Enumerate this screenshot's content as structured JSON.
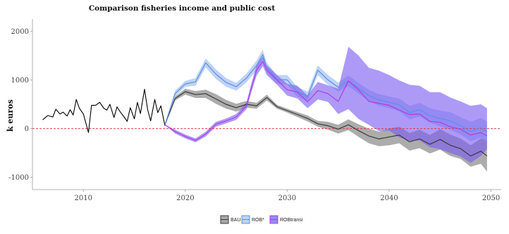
{
  "chart_data": {
    "type": "line",
    "title": "Comparison fisheries income and public cost",
    "xlabel": "",
    "ylabel": "k euros",
    "xlim": [
      2005,
      2051
    ],
    "ylim": [
      -1250,
      2250
    ],
    "x_ticks": [
      2010,
      2020,
      2030,
      2040,
      2050
    ],
    "y_ticks": [
      -1000,
      0,
      1000,
      2000
    ],
    "reference_line": {
      "y": 0,
      "style": "dashed",
      "color": "#e0333b"
    },
    "legend": {
      "placement": "bottom",
      "entries": [
        "BAU",
        "ROB*",
        "ROBtransi"
      ]
    },
    "historical": {
      "name": "",
      "color": "#000000",
      "x": [
        2006.0,
        2006.5,
        2007.0,
        2007.3,
        2007.7,
        2008.0,
        2008.4,
        2008.7,
        2009.0,
        2009.3,
        2009.6,
        2010.0,
        2010.5,
        2010.8,
        2011.2,
        2011.6,
        2012.0,
        2012.3,
        2012.6,
        2013.0,
        2013.3,
        2013.6,
        2014.0,
        2014.3,
        2014.6,
        2015.0,
        2015.3,
        2015.6,
        2016.0,
        2016.3,
        2016.6,
        2017.0,
        2017.3,
        2017.6,
        2018.0
      ],
      "y": [
        180,
        270,
        240,
        400,
        300,
        340,
        260,
        390,
        280,
        600,
        420,
        300,
        -80,
        480,
        480,
        540,
        420,
        380,
        500,
        230,
        450,
        350,
        240,
        150,
        430,
        200,
        540,
        310,
        810,
        390,
        160,
        600,
        330,
        470,
        60
      ]
    },
    "series": [
      {
        "name": "BAU",
        "color": "#3a3a3a",
        "band_color": "#8c8c8c",
        "x": [
          2018,
          2019,
          2020,
          2021,
          2022,
          2023,
          2024,
          2025,
          2026,
          2027,
          2028,
          2029,
          2030,
          2031,
          2032,
          2033,
          2034,
          2035,
          2036,
          2037,
          2038,
          2039,
          2040,
          2041,
          2042,
          2043,
          2044,
          2045,
          2046,
          2047,
          2048,
          2049,
          2049.6
        ],
        "y": [
          80,
          620,
          760,
          700,
          720,
          610,
          500,
          430,
          500,
          470,
          640,
          450,
          370,
          290,
          210,
          100,
          60,
          -10,
          80,
          -40,
          -150,
          -210,
          -170,
          -130,
          -270,
          -210,
          -320,
          -220,
          -340,
          -410,
          -560,
          -460,
          -560
        ],
        "lower": [
          80,
          580,
          700,
          630,
          630,
          510,
          410,
          350,
          430,
          410,
          580,
          410,
          330,
          240,
          150,
          40,
          -20,
          -100,
          -30,
          -170,
          -300,
          -360,
          -340,
          -300,
          -450,
          -400,
          -510,
          -430,
          -560,
          -620,
          -780,
          -720,
          -880
        ],
        "upper": [
          80,
          660,
          820,
          770,
          800,
          710,
          590,
          510,
          570,
          530,
          700,
          490,
          410,
          340,
          270,
          160,
          140,
          80,
          190,
          90,
          0,
          -60,
          0,
          40,
          -90,
          -20,
          -130,
          -10,
          -120,
          -200,
          -340,
          -200,
          -240
        ]
      },
      {
        "name": "ROB*",
        "color": "#5b8fe6",
        "band_color": "#a9c4f2",
        "x": [
          2018,
          2019,
          2020,
          2021,
          2022,
          2023,
          2024,
          2025,
          2026,
          2027,
          2027.6,
          2028,
          2029,
          2030,
          2031,
          2032,
          2033,
          2034,
          2035,
          2036,
          2037,
          2038,
          2039,
          2040,
          2041,
          2042,
          2043,
          2044,
          2045,
          2046,
          2047,
          2048,
          2049,
          2049.6
        ],
        "y": [
          80,
          720,
          920,
          960,
          1350,
          1120,
          950,
          860,
          1040,
          1300,
          1520,
          1250,
          1010,
          1000,
          760,
          660,
          1200,
          1000,
          850,
          980,
          830,
          680,
          590,
          540,
          490,
          330,
          390,
          270,
          210,
          160,
          60,
          -60,
          20,
          -60
        ],
        "lower": [
          80,
          660,
          860,
          880,
          1260,
          1020,
          860,
          780,
          950,
          1200,
          1420,
          1150,
          920,
          900,
          660,
          560,
          1100,
          900,
          760,
          870,
          720,
          560,
          470,
          420,
          360,
          190,
          250,
          120,
          50,
          -20,
          -120,
          -260,
          -180,
          -280
        ],
        "upper": [
          80,
          780,
          980,
          1040,
          1440,
          1220,
          1040,
          940,
          1130,
          1400,
          1620,
          1350,
          1100,
          1100,
          860,
          760,
          1300,
          1100,
          950,
          1090,
          940,
          800,
          710,
          660,
          620,
          470,
          530,
          420,
          370,
          340,
          240,
          140,
          220,
          150
        ]
      },
      {
        "name": "ROBtransi",
        "color": "#b23ae8",
        "band_color": "#7b5cf0",
        "x": [
          2018,
          2019,
          2020,
          2021,
          2022,
          2023,
          2024,
          2025,
          2026,
          2026.5,
          2027,
          2027.6,
          2028,
          2029,
          2030,
          2031,
          2032,
          2033,
          2034,
          2035,
          2036,
          2037,
          2038,
          2039,
          2040,
          2041,
          2042,
          2043,
          2044,
          2045,
          2046,
          2047,
          2048,
          2049,
          2049.6
        ],
        "y": [
          80,
          -60,
          -160,
          -240,
          -110,
          90,
          160,
          240,
          470,
          850,
          1200,
          1380,
          1200,
          1000,
          800,
          750,
          550,
          780,
          720,
          560,
          980,
          800,
          560,
          520,
          480,
          380,
          290,
          300,
          150,
          130,
          40,
          -10,
          -130,
          -80,
          -150
        ],
        "lower": [
          80,
          -100,
          -200,
          -280,
          -160,
          40,
          110,
          180,
          400,
          760,
          1090,
          1280,
          1100,
          900,
          680,
          620,
          420,
          600,
          550,
          300,
          400,
          200,
          80,
          -50,
          -40,
          -180,
          -250,
          -240,
          -380,
          -420,
          -500,
          -570,
          -700,
          -560,
          -420
        ],
        "upper": [
          80,
          -20,
          -120,
          -200,
          -60,
          140,
          210,
          300,
          540,
          940,
          1310,
          1480,
          1300,
          1100,
          920,
          880,
          680,
          960,
          890,
          820,
          1680,
          1500,
          1250,
          1190,
          1100,
          990,
          900,
          880,
          750,
          750,
          640,
          560,
          470,
          500,
          420
        ]
      }
    ]
  }
}
